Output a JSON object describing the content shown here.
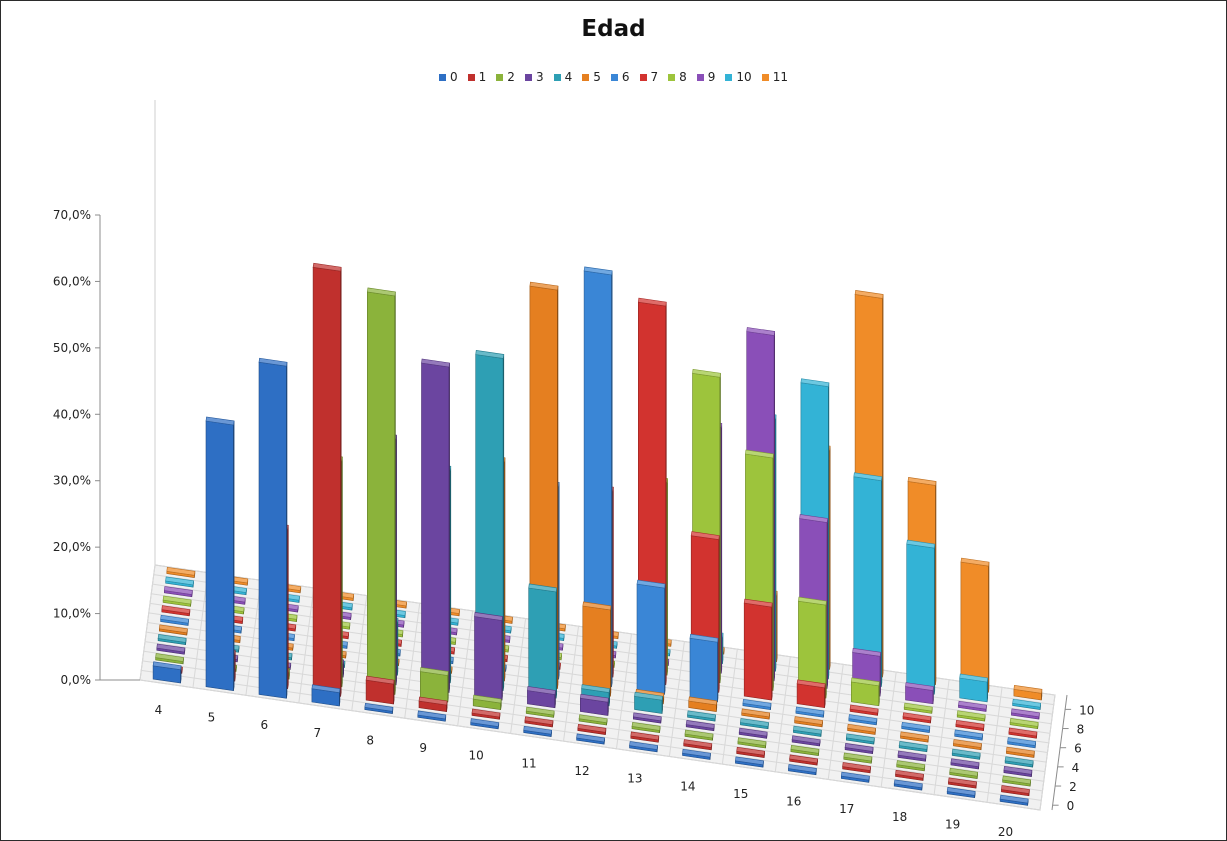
{
  "chart_data": {
    "type": "bar",
    "variant": "3d-column",
    "title": "Edad",
    "ylim": [
      0,
      70
    ],
    "y_ticks": [
      "0,0%",
      "10,0%",
      "20,0%",
      "30,0%",
      "40,0%",
      "50,0%",
      "60,0%",
      "70,0%"
    ],
    "categories": [
      "4",
      "5",
      "6",
      "7",
      "8",
      "9",
      "10",
      "11",
      "12",
      "13",
      "14",
      "15",
      "16",
      "17",
      "18",
      "19",
      "20"
    ],
    "depth_ticks": [
      "0",
      "2",
      "4",
      "6",
      "8",
      "10"
    ],
    "legend_position": "top",
    "gridlines": true,
    "series": [
      {
        "name": "0",
        "color": "#2e6fc4",
        "values": [
          2,
          40,
          50,
          2,
          0,
          0,
          0,
          0,
          0,
          0,
          0,
          0,
          0,
          0,
          0,
          0,
          0
        ]
      },
      {
        "name": "1",
        "color": "#c0302d",
        "values": [
          0,
          4,
          24,
          64,
          3,
          1,
          0,
          0,
          0,
          0,
          0,
          0,
          0,
          0,
          0,
          0,
          0
        ]
      },
      {
        "name": "2",
        "color": "#8bb33b",
        "values": [
          0,
          0,
          1,
          34,
          60,
          4,
          1,
          0,
          0,
          0,
          0,
          0,
          0,
          0,
          0,
          0,
          0
        ]
      },
      {
        "name": "3",
        "color": "#6b45a0",
        "values": [
          0,
          0,
          0,
          2,
          37,
          49,
          12,
          2,
          2,
          0,
          0,
          0,
          0,
          0,
          0,
          0,
          0
        ]
      },
      {
        "name": "4",
        "color": "#2e9fb4",
        "values": [
          0,
          0,
          0,
          0,
          8,
          32,
          50,
          16,
          2,
          2,
          0,
          0,
          0,
          0,
          0,
          0,
          0
        ]
      },
      {
        "name": "5",
        "color": "#e57f20",
        "values": [
          0,
          0,
          0,
          0,
          0,
          0,
          33,
          60,
          13,
          1,
          1,
          0,
          0,
          0,
          0,
          0,
          0
        ]
      },
      {
        "name": "6",
        "color": "#3a86d6",
        "values": [
          0,
          0,
          0,
          0,
          0,
          0,
          0,
          29,
          62,
          16,
          9,
          0,
          0,
          0,
          0,
          0,
          0
        ]
      },
      {
        "name": "7",
        "color": "#d2332f",
        "values": [
          0,
          0,
          0,
          0,
          0,
          0,
          0,
          0,
          28,
          57,
          23,
          14,
          3,
          0,
          0,
          0,
          0
        ]
      },
      {
        "name": "8",
        "color": "#9dc43c",
        "values": [
          0,
          0,
          0,
          0,
          0,
          0,
          0,
          0,
          0,
          29,
          46,
          35,
          14,
          3,
          0,
          0,
          0
        ]
      },
      {
        "name": "9",
        "color": "#8a4fb8",
        "values": [
          0,
          0,
          0,
          0,
          0,
          0,
          0,
          0,
          0,
          0,
          37,
          52,
          25,
          6,
          2,
          0,
          0
        ]
      },
      {
        "name": "10",
        "color": "#33b3d6",
        "values": [
          0,
          0,
          0,
          0,
          0,
          0,
          0,
          0,
          0,
          0,
          4,
          38,
          44,
          31,
          22,
          3,
          0
        ]
      },
      {
        "name": "11",
        "color": "#f08c28",
        "values": [
          0,
          0,
          0,
          0,
          0,
          0,
          0,
          0,
          0,
          0,
          0,
          10,
          33,
          57,
          30,
          19,
          1
        ]
      }
    ]
  }
}
